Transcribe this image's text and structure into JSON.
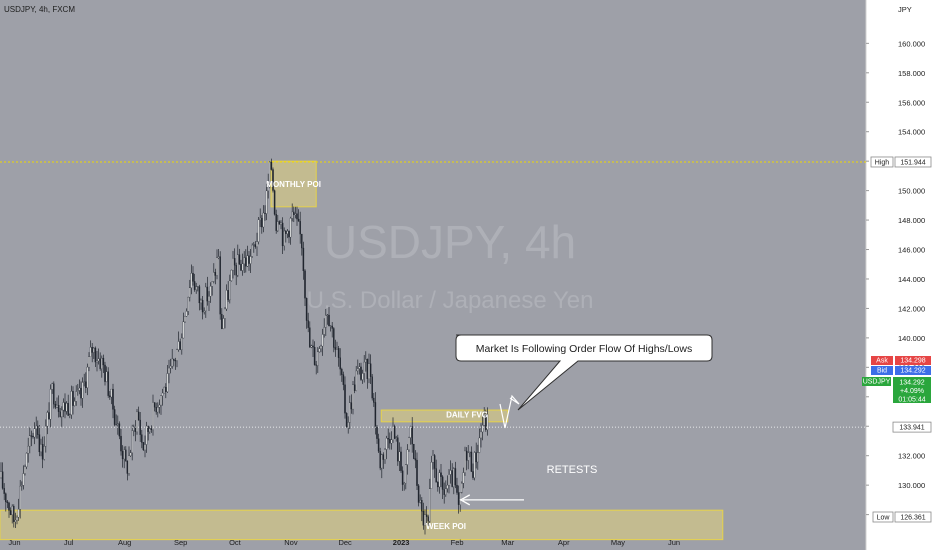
{
  "header": {
    "symbol_line": "USDJPY, 4h, FXCM"
  },
  "watermark": {
    "title": "USDJPY, 4h",
    "subtitle": "U.S. Dollar / Japanese Yen"
  },
  "colors": {
    "background": "#9ea0a8",
    "candle": "#20252e",
    "poi_fill": "#c9c08c",
    "poi_border": "#e6d24a",
    "high_line": "#f0d800",
    "price_line": "#ffffff",
    "ask_badge": "#e64545",
    "bid_badge": "#3d6ee8",
    "last_badge": "#2aa63c"
  },
  "chart_data": {
    "type": "candlestick",
    "title": "USDJPY, 4h, FXCM",
    "currency": "JPY",
    "y_ticks": [
      128,
      130,
      132,
      134,
      136,
      138,
      140,
      142,
      144,
      146,
      148,
      150,
      152,
      154,
      156,
      158,
      160
    ],
    "y_tick_labels": [
      "128.000",
      "130.000",
      "132.000",
      "134.000",
      "136.000",
      "138.000",
      "140.000",
      "142.000",
      "144.000",
      "146.000",
      "148.000",
      "150.000",
      "152.000",
      "154.000",
      "156.000",
      "158.000",
      "160.000"
    ],
    "ylim": [
      125.8,
      162.4
    ],
    "x_ticks": [
      "Jun",
      "Jul",
      "Aug",
      "Sep",
      "Oct",
      "Nov",
      "Dec",
      "2023",
      "Feb",
      "Mar",
      "Apr",
      "May",
      "Jun"
    ],
    "xlim": [
      "2022-05-24",
      "2023-07-02"
    ],
    "price_path": [
      [
        "2022-05-24",
        130.5
      ],
      [
        "2022-06-01",
        127.5
      ],
      [
        "2022-06-06",
        131
      ],
      [
        "2022-06-13",
        134.5
      ],
      [
        "2022-06-16",
        132
      ],
      [
        "2022-06-22",
        136.5
      ],
      [
        "2022-06-27",
        135.2
      ],
      [
        "2022-07-01",
        135.5
      ],
      [
        "2022-07-08",
        136.0
      ],
      [
        "2022-07-14",
        139.3
      ],
      [
        "2022-07-20",
        138.2
      ],
      [
        "2022-07-28",
        134.0
      ],
      [
        "2022-08-02",
        131.0
      ],
      [
        "2022-08-08",
        135.0
      ],
      [
        "2022-08-11",
        132.5
      ],
      [
        "2022-08-18",
        135.5
      ],
      [
        "2022-08-25",
        137.0
      ],
      [
        "2022-09-01",
        140.0
      ],
      [
        "2022-09-07",
        144.5
      ],
      [
        "2022-09-12",
        142.3
      ],
      [
        "2022-09-18",
        143.2
      ],
      [
        "2022-09-22",
        145.8
      ],
      [
        "2022-09-23",
        140.5
      ],
      [
        "2022-09-30",
        144.7
      ],
      [
        "2022-10-10",
        145.5
      ],
      [
        "2022-10-18",
        149.0
      ],
      [
        "2022-10-21",
        151.9
      ],
      [
        "2022-10-24",
        147.5
      ],
      [
        "2022-10-25",
        149.0
      ],
      [
        "2022-10-28",
        146.5
      ],
      [
        "2022-11-02",
        148.4
      ],
      [
        "2022-11-07",
        146.6
      ],
      [
        "2022-11-11",
        139.5
      ],
      [
        "2022-11-15",
        138.5
      ],
      [
        "2022-11-21",
        142.2
      ],
      [
        "2022-11-28",
        138.0
      ],
      [
        "2022-12-02",
        134.2
      ],
      [
        "2022-12-07",
        137.5
      ],
      [
        "2022-12-15",
        137.9
      ],
      [
        "2022-12-20",
        131.5
      ],
      [
        "2022-12-27",
        134.0
      ],
      [
        "2023-01-03",
        130.0
      ],
      [
        "2023-01-06",
        134.0
      ],
      [
        "2023-01-12",
        128.0
      ],
      [
        "2023-01-16",
        127.2
      ],
      [
        "2023-01-18",
        131.5
      ],
      [
        "2023-01-24",
        129.5
      ],
      [
        "2023-01-30",
        130.5
      ],
      [
        "2023-02-02",
        128.1
      ],
      [
        "2023-02-06",
        132.5
      ],
      [
        "2023-02-10",
        131.2
      ],
      [
        "2023-02-15",
        134.2
      ],
      [
        "2023-02-18",
        134.3
      ]
    ],
    "last_close": 134.292,
    "annotations": [
      {
        "kind": "zone",
        "label": "MONTHLY POI",
        "from": "2022-10-21",
        "to": "2022-11-15",
        "y_low": 148.9,
        "y_high": 152.0
      },
      {
        "kind": "zone",
        "label": "DAILY FVG",
        "from": "2022-12-21",
        "to": "2023-03-01",
        "y_low": 134.3,
        "y_high": 135.1
      },
      {
        "kind": "zone",
        "label": "WEEK POI",
        "from": "2022-05-24",
        "to": "2023-06-28",
        "y_low": 126.3,
        "y_high": 128.3
      },
      {
        "kind": "line",
        "label": "High",
        "value": 151.944
      },
      {
        "kind": "line",
        "label": "Price",
        "value": 133.941
      },
      {
        "kind": "callout",
        "text": "Market Is Following Order Flow Of Highs/Lows"
      },
      {
        "kind": "arrow",
        "text": "RETESTS",
        "from": "2023-03-10",
        "to": "2023-02-03",
        "y": 129.0
      }
    ]
  },
  "price_scale": {
    "currency_label": "JPY",
    "high": {
      "label": "High",
      "value": "151.944"
    },
    "low": {
      "label": "Low",
      "value": "126.361"
    },
    "ask": {
      "label": "Ask",
      "value": "134.298"
    },
    "bid": {
      "label": "Bid",
      "value": "134.292"
    },
    "last": {
      "symbol": "USDJPY",
      "value": "134.292",
      "change": "+4.09%",
      "countdown": "01:05:44"
    },
    "crosshair_value": "133.941"
  },
  "labels": {
    "monthly_poi": "MONTHLY POI",
    "daily_fvg": "DAILY FVG",
    "week_poi": "WEEK POI",
    "callout": "Market Is Following Order Flow Of Highs/Lows",
    "retests": "RETESTS"
  }
}
